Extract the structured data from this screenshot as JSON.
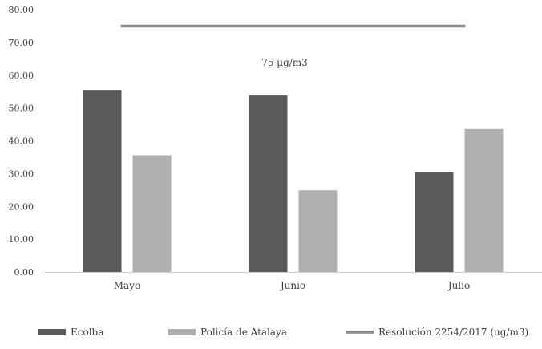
{
  "chart_data": {
    "type": "bar",
    "categories": [
      "Mayo",
      "Junio",
      "Julio"
    ],
    "series": [
      {
        "name": "Ecolba",
        "values": [
          55.5,
          53.8,
          30.4
        ],
        "color": "#5a5a5a"
      },
      {
        "name": "Policía de Atalaya",
        "values": [
          35.6,
          24.9,
          43.6
        ],
        "color": "#b0b0b0"
      }
    ],
    "reference_line": {
      "name": "Resolución 2254/2017 (ug/m3)",
      "value": 75,
      "color": "#8a8a8a",
      "annotation": "75 µg/m3"
    },
    "ylim": [
      0,
      80
    ],
    "yticks": [
      "0.00",
      "10.00",
      "20.00",
      "30.00",
      "40.00",
      "50.00",
      "60.00",
      "70.00",
      "80.00"
    ],
    "grid": false,
    "legend_position": "bottom",
    "title": "",
    "xlabel": "",
    "ylabel": ""
  }
}
